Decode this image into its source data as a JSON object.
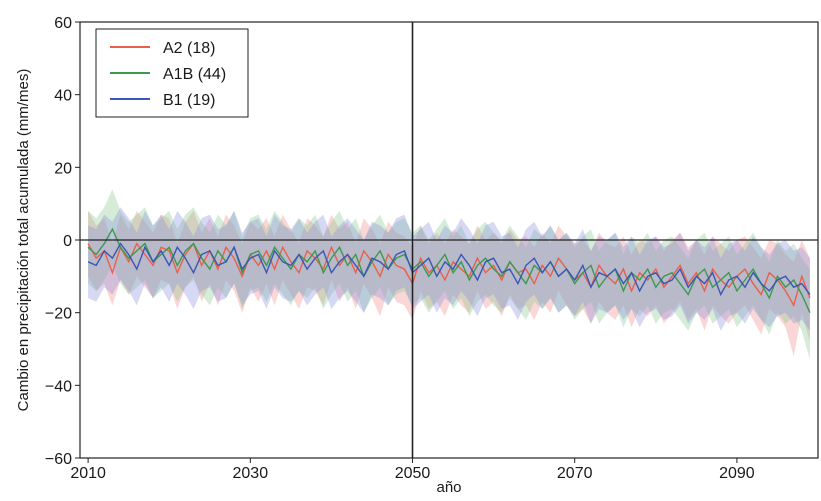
{
  "chart_data": {
    "type": "line",
    "xlabel": "año",
    "ylabel": "Cambio en precipitación total acumulada (mm/mes)",
    "xlim": [
      2009,
      2100
    ],
    "ylim": [
      -60,
      60
    ],
    "x_ticks": [
      2010,
      2030,
      2050,
      2070,
      2090
    ],
    "y_ticks": [
      -60,
      -40,
      -20,
      0,
      20,
      40,
      60
    ],
    "reference_lines": {
      "horizontal_y": 0,
      "vertical_x": 2050
    },
    "legend_position": "top-left",
    "grid": false,
    "x": [
      2010,
      2011,
      2012,
      2013,
      2014,
      2015,
      2016,
      2017,
      2018,
      2019,
      2020,
      2021,
      2022,
      2023,
      2024,
      2025,
      2026,
      2027,
      2028,
      2029,
      2030,
      2031,
      2032,
      2033,
      2034,
      2035,
      2036,
      2037,
      2038,
      2039,
      2040,
      2041,
      2042,
      2043,
      2044,
      2045,
      2046,
      2047,
      2048,
      2049,
      2050,
      2051,
      2052,
      2053,
      2054,
      2055,
      2056,
      2057,
      2058,
      2059,
      2060,
      2061,
      2062,
      2063,
      2064,
      2065,
      2066,
      2067,
      2068,
      2069,
      2070,
      2071,
      2072,
      2073,
      2074,
      2075,
      2076,
      2077,
      2078,
      2079,
      2080,
      2081,
      2082,
      2083,
      2084,
      2085,
      2086,
      2087,
      2088,
      2089,
      2090,
      2091,
      2092,
      2093,
      2094,
      2095,
      2096,
      2097,
      2098,
      2099
    ],
    "series": [
      {
        "name": "A2 (18)",
        "color": "#e8604c",
        "band_color": "#f08a8a",
        "mean": [
          -1,
          -5,
          -3,
          -9,
          -2,
          -6,
          -1,
          -4,
          -7,
          -2,
          -3,
          -9,
          -4,
          -1,
          -7,
          -3,
          -8,
          -2,
          -5,
          -10,
          -4,
          -7,
          -3,
          -8,
          -2,
          -6,
          -9,
          -3,
          -5,
          -8,
          -2,
          -7,
          -4,
          -9,
          -3,
          -6,
          -10,
          -4,
          -7,
          -8,
          -12,
          -5,
          -9,
          -7,
          -11,
          -6,
          -8,
          -10,
          -5,
          -9,
          -7,
          -11,
          -6,
          -9,
          -8,
          -12,
          -7,
          -10,
          -5,
          -8,
          -11,
          -9,
          -13,
          -7,
          -10,
          -12,
          -8,
          -14,
          -9,
          -11,
          -8,
          -13,
          -10,
          -7,
          -12,
          -9,
          -14,
          -8,
          -11,
          -13,
          -10,
          -8,
          -12,
          -15,
          -9,
          -11,
          -14,
          -18,
          -10,
          -16
        ],
        "lower": [
          -10,
          -14,
          -12,
          -18,
          -11,
          -15,
          -10,
          -13,
          -16,
          -11,
          -12,
          -19,
          -13,
          -10,
          -17,
          -12,
          -18,
          -11,
          -14,
          -20,
          -13,
          -17,
          -12,
          -18,
          -11,
          -15,
          -19,
          -13,
          -14,
          -18,
          -11,
          -17,
          -13,
          -19,
          -12,
          -16,
          -21,
          -13,
          -17,
          -18,
          -22,
          -14,
          -19,
          -17,
          -21,
          -15,
          -18,
          -20,
          -14,
          -19,
          -17,
          -21,
          -15,
          -19,
          -18,
          -22,
          -17,
          -20,
          -14,
          -18,
          -21,
          -19,
          -23,
          -17,
          -20,
          -22,
          -18,
          -24,
          -19,
          -21,
          -18,
          -23,
          -20,
          -17,
          -22,
          -19,
          -25,
          -18,
          -21,
          -23,
          -20,
          -18,
          -22,
          -26,
          -19,
          -21,
          -24,
          -32,
          -20,
          -28
        ],
        "upper": [
          8,
          4,
          6,
          -1,
          7,
          3,
          8,
          5,
          2,
          7,
          6,
          -1,
          5,
          8,
          2,
          6,
          1,
          7,
          4,
          -1,
          5,
          3,
          6,
          1,
          7,
          3,
          -1,
          6,
          4,
          1,
          7,
          3,
          5,
          -1,
          6,
          3,
          -1,
          5,
          2,
          1,
          -2,
          4,
          -1,
          2,
          -1,
          3,
          1,
          -1,
          4,
          0,
          2,
          -1,
          3,
          0,
          1,
          -2,
          2,
          -1,
          4,
          1,
          -1,
          0,
          -3,
          2,
          -1,
          -2,
          1,
          -4,
          0,
          -1,
          1,
          -3,
          0,
          2,
          -2,
          0,
          -4,
          1,
          -1,
          -3,
          0,
          1,
          -2,
          -5,
          0,
          -1,
          -4,
          -6,
          0,
          -5
        ]
      },
      {
        "name": "A1B (44)",
        "color": "#3c9a4f",
        "band_color": "#86c98e",
        "mean": [
          -2,
          -4,
          -1,
          3,
          -2,
          -5,
          -3,
          -1,
          -6,
          -4,
          -2,
          -7,
          -3,
          -1,
          -5,
          -8,
          -3,
          -6,
          -2,
          -9,
          -4,
          -3,
          -7,
          -2,
          -5,
          -8,
          -4,
          -6,
          -3,
          -9,
          -5,
          -2,
          -7,
          -4,
          -10,
          -6,
          -3,
          -8,
          -5,
          -4,
          -8,
          -6,
          -10,
          -7,
          -4,
          -9,
          -6,
          -11,
          -7,
          -5,
          -8,
          -10,
          -6,
          -9,
          -12,
          -7,
          -9,
          -6,
          -10,
          -8,
          -12,
          -9,
          -7,
          -13,
          -10,
          -8,
          -14,
          -9,
          -11,
          -8,
          -13,
          -10,
          -9,
          -12,
          -15,
          -10,
          -8,
          -13,
          -11,
          -9,
          -14,
          -11,
          -8,
          -12,
          -16,
          -10,
          -13,
          -11,
          -15,
          -20
        ],
        "lower": [
          -12,
          -14,
          -11,
          -7,
          -12,
          -15,
          -13,
          -11,
          -16,
          -14,
          -12,
          -17,
          -13,
          -11,
          -15,
          -18,
          -13,
          -16,
          -12,
          -19,
          -14,
          -13,
          -17,
          -12,
          -15,
          -18,
          -14,
          -16,
          -13,
          -19,
          -15,
          -12,
          -17,
          -14,
          -20,
          -16,
          -13,
          -18,
          -15,
          -14,
          -18,
          -16,
          -20,
          -17,
          -14,
          -19,
          -16,
          -21,
          -17,
          -15,
          -18,
          -20,
          -16,
          -19,
          -22,
          -17,
          -19,
          -16,
          -20,
          -18,
          -22,
          -19,
          -17,
          -23,
          -20,
          -18,
          -24,
          -19,
          -21,
          -18,
          -23,
          -20,
          -19,
          -22,
          -25,
          -20,
          -18,
          -23,
          -21,
          -19,
          -24,
          -21,
          -18,
          -22,
          -26,
          -20,
          -23,
          -21,
          -25,
          -33
        ],
        "upper": [
          8,
          6,
          9,
          14,
          8,
          5,
          7,
          9,
          4,
          6,
          8,
          3,
          7,
          9,
          5,
          2,
          7,
          4,
          8,
          1,
          6,
          7,
          3,
          8,
          5,
          2,
          6,
          4,
          7,
          1,
          5,
          8,
          3,
          6,
          0,
          4,
          7,
          2,
          5,
          6,
          2,
          4,
          0,
          3,
          6,
          1,
          4,
          -1,
          3,
          5,
          2,
          0,
          4,
          1,
          -2,
          3,
          1,
          4,
          0,
          2,
          -2,
          1,
          3,
          -3,
          0,
          2,
          -4,
          1,
          -1,
          2,
          -3,
          0,
          1,
          -2,
          -5,
          0,
          2,
          -3,
          -1,
          1,
          -4,
          -1,
          2,
          -2,
          -6,
          0,
          -3,
          -1,
          -5,
          -8
        ]
      },
      {
        "name": "B1 (19)",
        "color": "#3b56b5",
        "band_color": "#8a8fe0",
        "mean": [
          -6,
          -7,
          -3,
          -5,
          -1,
          -4,
          -8,
          -2,
          -6,
          -3,
          -7,
          -2,
          -5,
          -9,
          -4,
          -3,
          -7,
          -6,
          -2,
          -8,
          -5,
          -4,
          -9,
          -3,
          -6,
          -7,
          -4,
          -8,
          -5,
          -3,
          -9,
          -6,
          -4,
          -7,
          -10,
          -5,
          -6,
          -8,
          -4,
          -3,
          -9,
          -7,
          -5,
          -10,
          -6,
          -8,
          -4,
          -7,
          -11,
          -6,
          -5,
          -9,
          -8,
          -12,
          -7,
          -5,
          -9,
          -6,
          -10,
          -8,
          -11,
          -7,
          -13,
          -9,
          -10,
          -8,
          -12,
          -9,
          -14,
          -10,
          -9,
          -12,
          -11,
          -8,
          -13,
          -10,
          -12,
          -9,
          -15,
          -11,
          -10,
          -13,
          -9,
          -12,
          -14,
          -11,
          -10,
          -13,
          -12,
          -15
        ],
        "lower": [
          -16,
          -17,
          -13,
          -15,
          -11,
          -14,
          -18,
          -12,
          -16,
          -13,
          -17,
          -12,
          -15,
          -19,
          -14,
          -13,
          -17,
          -16,
          -12,
          -18,
          -15,
          -14,
          -19,
          -13,
          -16,
          -17,
          -14,
          -18,
          -15,
          -13,
          -19,
          -16,
          -14,
          -17,
          -20,
          -15,
          -16,
          -18,
          -14,
          -13,
          -19,
          -17,
          -15,
          -20,
          -16,
          -18,
          -14,
          -17,
          -21,
          -16,
          -15,
          -19,
          -18,
          -22,
          -17,
          -15,
          -19,
          -16,
          -20,
          -18,
          -21,
          -17,
          -23,
          -19,
          -20,
          -18,
          -22,
          -19,
          -24,
          -20,
          -19,
          -22,
          -21,
          -18,
          -23,
          -20,
          -22,
          -19,
          -25,
          -21,
          -20,
          -23,
          -19,
          -22,
          -24,
          -21,
          -20,
          -23,
          -22,
          -25
        ],
        "upper": [
          4,
          3,
          7,
          5,
          9,
          6,
          2,
          8,
          4,
          7,
          3,
          8,
          5,
          1,
          6,
          7,
          3,
          4,
          8,
          2,
          5,
          6,
          1,
          7,
          4,
          3,
          6,
          2,
          5,
          7,
          1,
          4,
          6,
          3,
          0,
          5,
          4,
          2,
          6,
          7,
          1,
          3,
          5,
          0,
          4,
          2,
          6,
          3,
          -1,
          4,
          5,
          1,
          2,
          -2,
          3,
          5,
          1,
          4,
          0,
          2,
          -1,
          3,
          -3,
          1,
          0,
          2,
          -2,
          1,
          -4,
          0,
          1,
          -2,
          -1,
          2,
          -3,
          0,
          -2,
          1,
          -5,
          -1,
          0,
          -3,
          1,
          -2,
          -4,
          -1,
          0,
          -3,
          -2,
          -5
        ]
      }
    ]
  }
}
